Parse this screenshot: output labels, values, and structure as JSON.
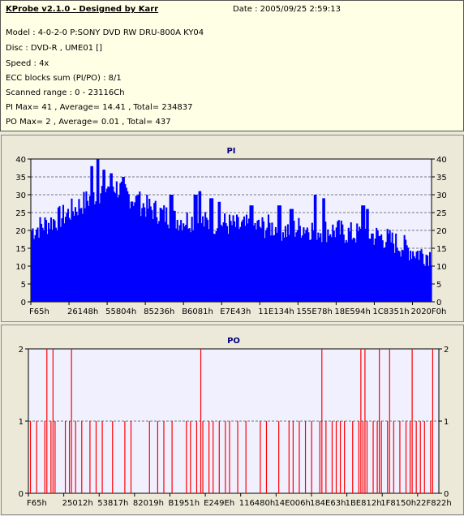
{
  "header": {
    "title": "KProbe v2.1.0 - Designed by Karr",
    "date": "Date : 2005/09/25 2:59:13",
    "lines": [
      "Model : 4-0-2-0 P:SONY    DVD RW DRU-800A  KY04",
      "Disc : DVD-R , UME01 []",
      "Speed : 4x",
      "ECC blocks sum (PI/PO) : 8/1",
      "Scanned range : 0 - 23116Ch",
      "PI Max= 41 , Average= 14.41 , Total= 234837",
      "PO Max= 2 , Average= 0.01 , Total= 437"
    ]
  },
  "colors": {
    "pi_bar": "#0000ff",
    "po_bar": "#ff0000",
    "plot_bg": "#f0f0ff",
    "title": "#000080"
  },
  "chart_data": [
    {
      "type": "bar",
      "title": "PI",
      "ylim": [
        0,
        40
      ],
      "yticks": [
        0,
        5,
        10,
        15,
        20,
        25,
        30,
        35,
        40
      ],
      "x_ticks": [
        "F65h",
        "26148h",
        "55804h",
        "85236h",
        "B6081h",
        "E7E43h",
        "11E134h",
        "155E78h",
        "18E594h",
        "1C8351h",
        "2020F0h"
      ],
      "grid": true,
      "profile": [
        [
          0,
          20
        ],
        [
          4,
          22
        ],
        [
          8,
          24
        ],
        [
          12,
          27
        ],
        [
          16,
          30
        ],
        [
          20,
          33
        ],
        [
          24,
          30
        ],
        [
          28,
          27
        ],
        [
          32,
          25
        ],
        [
          36,
          23
        ],
        [
          40,
          23
        ],
        [
          44,
          22
        ],
        [
          48,
          22
        ],
        [
          52,
          21
        ],
        [
          56,
          21
        ],
        [
          60,
          21
        ],
        [
          64,
          20
        ],
        [
          68,
          21
        ],
        [
          72,
          20
        ],
        [
          76,
          20
        ],
        [
          80,
          19
        ],
        [
          84,
          19
        ],
        [
          88,
          18
        ],
        [
          92,
          16
        ],
        [
          96,
          14
        ],
        [
          100,
          13
        ]
      ],
      "peaks": [
        [
          15,
          38
        ],
        [
          16.5,
          41
        ],
        [
          18,
          37
        ],
        [
          20,
          36
        ],
        [
          23,
          35
        ],
        [
          27,
          30
        ],
        [
          35,
          30
        ],
        [
          41,
          30
        ],
        [
          42,
          31
        ],
        [
          45,
          29
        ],
        [
          47,
          28
        ],
        [
          55,
          27
        ],
        [
          62,
          27
        ],
        [
          65,
          26
        ],
        [
          71,
          30
        ],
        [
          73,
          29
        ],
        [
          83,
          27
        ],
        [
          84,
          26
        ]
      ]
    },
    {
      "type": "bar",
      "title": "PO",
      "ylim": [
        0,
        2
      ],
      "yticks": [
        0,
        1,
        2
      ],
      "x_ticks": [
        "F65h",
        "25012h",
        "53817h",
        "82019h",
        "B1951h",
        "E249Eh",
        "116480h",
        "14E006h",
        "184E63h",
        "1BE812h",
        "1F8150h",
        "22F822h"
      ],
      "grid": true,
      "ones": [
        0.5,
        2,
        4,
        5.5,
        6.5,
        9,
        10,
        11.5,
        13,
        15,
        16.5,
        18,
        20.5,
        23.5,
        25,
        29.5,
        31.5,
        33,
        35,
        38.5,
        39.5,
        41,
        42.5,
        44,
        45,
        46.5,
        48,
        49,
        51,
        53,
        56.5,
        58,
        61,
        63.5,
        64.5,
        66,
        67.5,
        69,
        71,
        72.5,
        74,
        75,
        76,
        77,
        79,
        80.5,
        81.5,
        82.5,
        84,
        85,
        86,
        87.5,
        89,
        90.5,
        92,
        93,
        94.5,
        95.5,
        96.5,
        98
      ],
      "twos": [
        4.5,
        6,
        10.5,
        42,
        71.5,
        81,
        82,
        85.5,
        88,
        93.5,
        98.5
      ]
    }
  ]
}
